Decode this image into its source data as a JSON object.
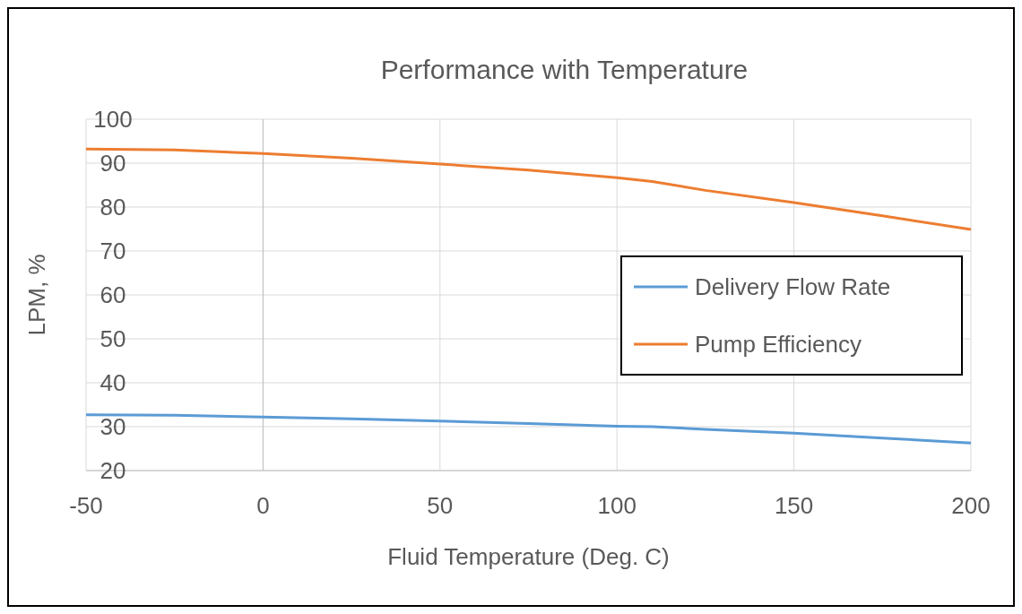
{
  "chart_data": {
    "type": "line",
    "title": "Performance  with Temperature",
    "xlabel": "Fluid Temperature (Deg. C)",
    "ylabel": "LPM, %",
    "xlim": [
      -50,
      200
    ],
    "xticks": [
      -50,
      0,
      50,
      100,
      150,
      200
    ],
    "ylim": [
      20,
      100
    ],
    "yticks": [
      20,
      30,
      40,
      50,
      60,
      70,
      80,
      90,
      100
    ],
    "grid": true,
    "legend": "right",
    "marker": "none",
    "line_style": "solid",
    "series": [
      {
        "name": "Delivery Flow Rate",
        "color": "#5b9bd5",
        "x": [
          -50,
          -25,
          0,
          25,
          50,
          75,
          100,
          110,
          125,
          150,
          175,
          200
        ],
        "values": [
          32.7,
          32.6,
          32.2,
          31.8,
          31.3,
          30.7,
          30.1,
          30.0,
          29.4,
          28.5,
          27.4,
          26.3
        ]
      },
      {
        "name": "Pump Efficiency",
        "color": "#ed7d31",
        "x": [
          -50,
          -25,
          0,
          25,
          50,
          75,
          100,
          110,
          125,
          150,
          175,
          200
        ],
        "values": [
          93.2,
          93.0,
          92.2,
          91.1,
          89.8,
          88.4,
          86.7,
          85.8,
          83.8,
          81.0,
          78.0,
          74.9
        ]
      }
    ]
  }
}
